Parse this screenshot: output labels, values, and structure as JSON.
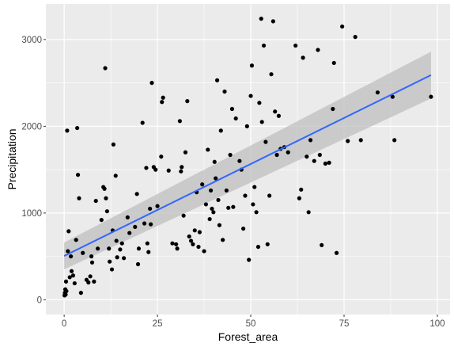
{
  "chart_data": {
    "type": "scatter",
    "title": "",
    "xlabel": "Forest_area",
    "ylabel": "Precipitation",
    "xlim": [
      -4.9,
      103.4
    ],
    "ylim": [
      -170,
      3410
    ],
    "x_ticks": [
      0,
      25,
      50,
      75,
      100
    ],
    "y_ticks": [
      0,
      1000,
      2000,
      3000
    ],
    "grid": true,
    "legend": "none",
    "colors": {
      "panel": "#ebebeb",
      "grid_major": "#ffffff",
      "points": "#000000",
      "fit_line": "#3366ff",
      "confidence_band": "#bfbfbf"
    },
    "smooth": {
      "method": "linear",
      "x": [
        0,
        98.3
      ],
      "y": [
        505,
        2590
      ],
      "band_lower": [
        350,
        2320
      ],
      "band_upper": [
        660,
        2860
      ]
    },
    "points": [
      [
        0.1,
        50
      ],
      [
        0.2,
        80
      ],
      [
        0.3,
        120
      ],
      [
        0.4,
        60
      ],
      [
        0.5,
        210
      ],
      [
        0.6,
        100
      ],
      [
        0.8,
        1950
      ],
      [
        1.0,
        560
      ],
      [
        1.2,
        790
      ],
      [
        1.5,
        260
      ],
      [
        1.8,
        500
      ],
      [
        2.0,
        330
      ],
      [
        2.4,
        280
      ],
      [
        2.8,
        190
      ],
      [
        3.2,
        690
      ],
      [
        3.5,
        1980
      ],
      [
        3.7,
        1440
      ],
      [
        4.0,
        1170
      ],
      [
        4.5,
        80
      ],
      [
        5.0,
        540
      ],
      [
        6.0,
        230
      ],
      [
        6.5,
        200
      ],
      [
        7.0,
        270
      ],
      [
        7.3,
        500
      ],
      [
        7.5,
        430
      ],
      [
        8.0,
        210
      ],
      [
        8.5,
        1140
      ],
      [
        9.0,
        590
      ],
      [
        10.0,
        920
      ],
      [
        10.5,
        1300
      ],
      [
        10.8,
        1280
      ],
      [
        11.0,
        2670
      ],
      [
        11.2,
        1170
      ],
      [
        11.5,
        1020
      ],
      [
        12.0,
        590
      ],
      [
        12.2,
        440
      ],
      [
        12.8,
        350
      ],
      [
        13.0,
        800
      ],
      [
        13.2,
        1790
      ],
      [
        13.8,
        1430
      ],
      [
        14.0,
        680
      ],
      [
        14.2,
        490
      ],
      [
        15.0,
        580
      ],
      [
        15.5,
        650
      ],
      [
        16.0,
        480
      ],
      [
        17.0,
        950
      ],
      [
        17.5,
        770
      ],
      [
        19.0,
        840
      ],
      [
        19.5,
        1220
      ],
      [
        19.8,
        410
      ],
      [
        20.0,
        590
      ],
      [
        21.0,
        2040
      ],
      [
        21.5,
        880
      ],
      [
        22.0,
        1520
      ],
      [
        22.3,
        650
      ],
      [
        22.6,
        550
      ],
      [
        23.0,
        1050
      ],
      [
        23.2,
        870
      ],
      [
        23.5,
        2500
      ],
      [
        24.0,
        1530
      ],
      [
        24.5,
        1500
      ],
      [
        25.0,
        1080
      ],
      [
        26.0,
        1650
      ],
      [
        26.2,
        2280
      ],
      [
        26.5,
        2330
      ],
      [
        28.0,
        1490
      ],
      [
        29.0,
        650
      ],
      [
        30.0,
        640
      ],
      [
        30.3,
        590
      ],
      [
        31.0,
        2060
      ],
      [
        31.3,
        1480
      ],
      [
        31.5,
        1530
      ],
      [
        32.0,
        970
      ],
      [
        32.5,
        1700
      ],
      [
        33.0,
        2290
      ],
      [
        33.5,
        730
      ],
      [
        34.0,
        680
      ],
      [
        34.5,
        640
      ],
      [
        35.0,
        800
      ],
      [
        35.5,
        1240
      ],
      [
        36.0,
        610
      ],
      [
        36.3,
        780
      ],
      [
        37.0,
        1330
      ],
      [
        37.5,
        560
      ],
      [
        38.0,
        1100
      ],
      [
        38.5,
        1730
      ],
      [
        39.0,
        930
      ],
      [
        39.3,
        1260
      ],
      [
        39.6,
        1050
      ],
      [
        40.0,
        1010
      ],
      [
        40.3,
        1590
      ],
      [
        40.6,
        1400
      ],
      [
        41.0,
        2530
      ],
      [
        41.3,
        1150
      ],
      [
        41.6,
        860
      ],
      [
        42.0,
        1950
      ],
      [
        42.5,
        690
      ],
      [
        43.0,
        2400
      ],
      [
        43.5,
        1260
      ],
      [
        44.0,
        1060
      ],
      [
        44.5,
        1670
      ],
      [
        45.0,
        2200
      ],
      [
        45.3,
        1070
      ],
      [
        46.0,
        2090
      ],
      [
        47.0,
        1600
      ],
      [
        47.5,
        1500
      ],
      [
        48.0,
        820
      ],
      [
        48.5,
        1200
      ],
      [
        49.0,
        2000
      ],
      [
        49.5,
        460
      ],
      [
        50.0,
        2350
      ],
      [
        50.3,
        2700
      ],
      [
        50.6,
        1100
      ],
      [
        51.0,
        1300
      ],
      [
        51.5,
        1010
      ],
      [
        52.0,
        610
      ],
      [
        52.3,
        2270
      ],
      [
        52.8,
        3240
      ],
      [
        53.0,
        2050
      ],
      [
        53.5,
        2930
      ],
      [
        54.0,
        1820
      ],
      [
        54.5,
        640
      ],
      [
        55.0,
        1200
      ],
      [
        55.5,
        2600
      ],
      [
        56.0,
        3210
      ],
      [
        56.5,
        2170
      ],
      [
        57.0,
        1670
      ],
      [
        57.5,
        2120
      ],
      [
        58.0,
        1740
      ],
      [
        59.0,
        1760
      ],
      [
        60.0,
        1700
      ],
      [
        62.0,
        2930
      ],
      [
        63.0,
        1170
      ],
      [
        63.5,
        1270
      ],
      [
        64.0,
        2790
      ],
      [
        65.0,
        1650
      ],
      [
        65.5,
        1010
      ],
      [
        66.0,
        1840
      ],
      [
        67.0,
        1600
      ],
      [
        68.0,
        2880
      ],
      [
        68.5,
        1670
      ],
      [
        69.0,
        630
      ],
      [
        70.0,
        1570
      ],
      [
        71.0,
        1580
      ],
      [
        72.0,
        2200
      ],
      [
        72.3,
        2730
      ],
      [
        73.0,
        540
      ],
      [
        74.5,
        3150
      ],
      [
        76.0,
        1830
      ],
      [
        78.0,
        3030
      ],
      [
        79.5,
        1840
      ],
      [
        84.0,
        2390
      ],
      [
        88.0,
        2340
      ],
      [
        88.5,
        1840
      ],
      [
        98.3,
        2340
      ]
    ]
  }
}
